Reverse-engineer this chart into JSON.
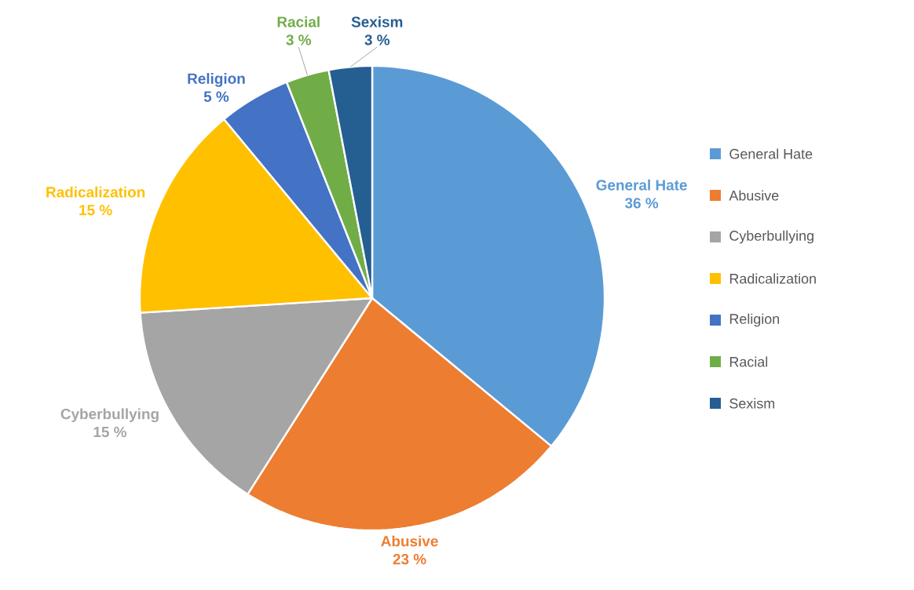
{
  "chart_data": {
    "type": "pie",
    "categories": [
      "General Hate",
      "Abusive",
      "Cyberbullying",
      "Radicalization",
      "Religion",
      "Racial",
      "Sexism"
    ],
    "values": [
      36,
      23,
      15,
      15,
      5,
      3,
      3
    ],
    "value_labels": [
      "36 %",
      "23 %",
      "15 %",
      "15 %",
      "5 %",
      "3 %",
      "3 %"
    ],
    "colors": [
      "#5b9bd5",
      "#ed7d31",
      "#a5a5a5",
      "#ffc000",
      "#4472c4",
      "#70ad47",
      "#255e91"
    ],
    "legend": "right"
  }
}
